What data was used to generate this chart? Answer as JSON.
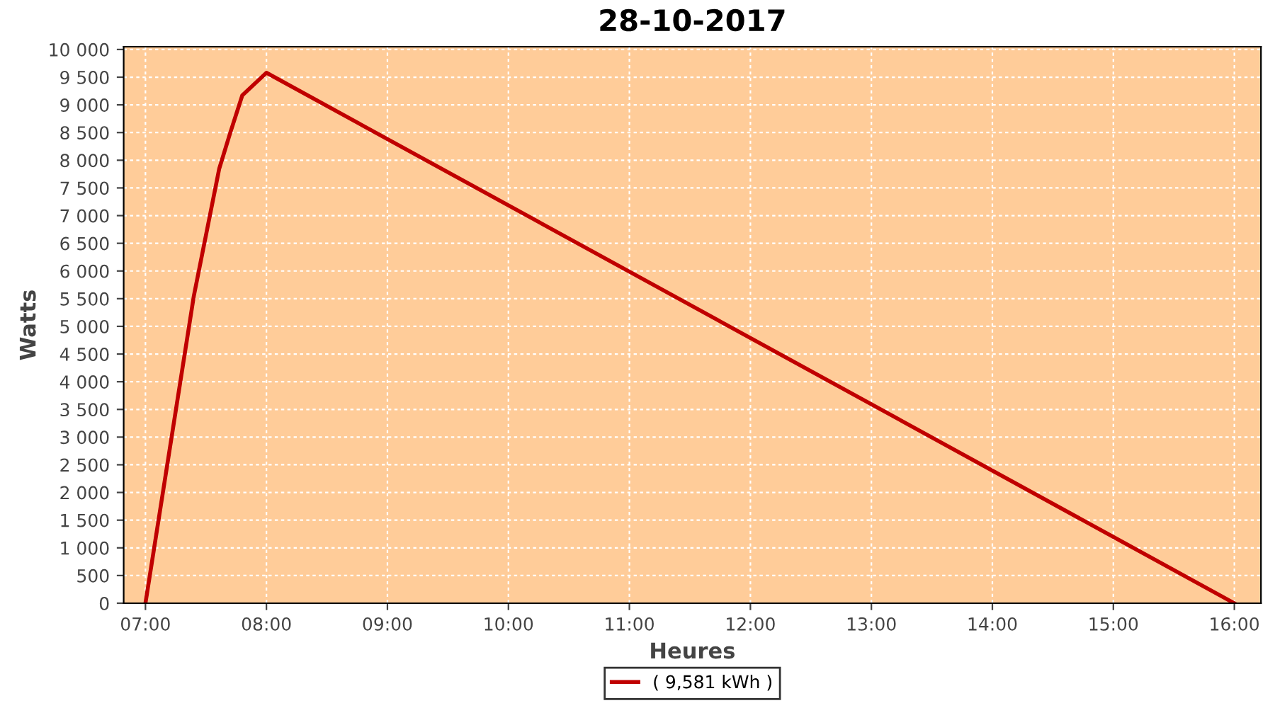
{
  "chart_data": {
    "type": "line",
    "title": "28-10-2017",
    "xlabel": "Heures",
    "ylabel": "Watts",
    "series": [
      {
        "name": "( 9,581 kWh )",
        "color": "#c00000",
        "x": [
          7.0,
          7.4,
          7.61,
          7.7,
          7.8,
          8.0,
          16.0
        ],
        "values": [
          0,
          5550,
          7850,
          8490,
          9170,
          9580,
          0
        ]
      }
    ],
    "xlim": [
      6.82,
      16.22
    ],
    "xticks": [
      {
        "value": 7,
        "label": "07:00"
      },
      {
        "value": 8,
        "label": "08:00"
      },
      {
        "value": 9,
        "label": "09:00"
      },
      {
        "value": 10,
        "label": "10:00"
      },
      {
        "value": 11,
        "label": "11:00"
      },
      {
        "value": 12,
        "label": "12:00"
      },
      {
        "value": 13,
        "label": "13:00"
      },
      {
        "value": 14,
        "label": "14:00"
      },
      {
        "value": 15,
        "label": "15:00"
      },
      {
        "value": 16,
        "label": "16:00"
      }
    ],
    "ylim": [
      0,
      10050
    ],
    "yticks": [
      0,
      500,
      {
        "value": 1000,
        "label": "1 000"
      },
      {
        "value": 1500,
        "label": "1 500"
      },
      {
        "value": 2000,
        "label": "2 000"
      },
      {
        "value": 2500,
        "label": "2 500"
      },
      {
        "value": 3000,
        "label": "3 000"
      },
      {
        "value": 3500,
        "label": "3 500"
      },
      {
        "value": 4000,
        "label": "4 000"
      },
      {
        "value": 4500,
        "label": "4 500"
      },
      {
        "value": 5000,
        "label": "5 000"
      },
      {
        "value": 5500,
        "label": "5 500"
      },
      {
        "value": 6000,
        "label": "6 000"
      },
      {
        "value": 6500,
        "label": "6 500"
      },
      {
        "value": 7000,
        "label": "7 000"
      },
      {
        "value": 7500,
        "label": "7 500"
      },
      {
        "value": 8000,
        "label": "8 000"
      },
      {
        "value": 8500,
        "label": "8 500"
      },
      {
        "value": 9000,
        "label": "9 000"
      },
      {
        "value": 9500,
        "label": "9 500"
      },
      {
        "value": 10000,
        "label": "10 000"
      }
    ],
    "grid": true,
    "legend": "bottom",
    "marker": "none",
    "line_style": "solid"
  }
}
